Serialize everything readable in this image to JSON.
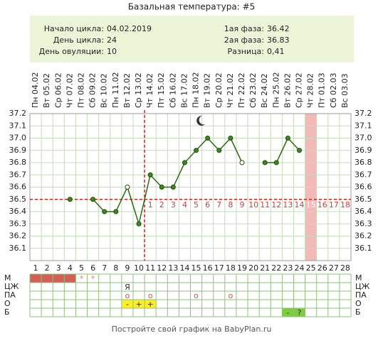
{
  "chart_data": {
    "type": "line",
    "title": "Базальная температура: #5",
    "info_left": [
      {
        "label": "Начало цикла:",
        "value": "04.02.2019"
      },
      {
        "label": "День цикла:",
        "value": "24"
      },
      {
        "label": "День овуляции:",
        "value": "10"
      }
    ],
    "info_right": [
      {
        "label": "1ая фаза:",
        "value": "36.42"
      },
      {
        "label": "2ая фаза:",
        "value": "36.83"
      },
      {
        "label": "Разница:",
        "value": "0,41"
      }
    ],
    "dates": [
      "Пн 04.02",
      "Вт 05.02",
      "Ср 06.02",
      "Чт 07.02",
      "Пт 08.02",
      "Сб 09.02",
      "Вс 10.02",
      "Пн 11.02",
      "Вт 12.02",
      "Ср 13.02",
      "Чт 14.02",
      "Пт 15.02",
      "Сб 16.02",
      "Вс 17.02",
      "Пн 18.02",
      "Вт 19.02",
      "Ср 20.02",
      "Чт 21.02",
      "Пт 22.02",
      "Сб 23.02",
      "Вс 24.02",
      "Пн 25.02",
      "Вт 26.02",
      "Ср 27.02",
      "Чт 28.02",
      "Пт 01.03",
      "Сб 02.03",
      "Вс 03.03"
    ],
    "x": [
      1,
      2,
      3,
      4,
      5,
      6,
      7,
      8,
      9,
      10,
      11,
      12,
      13,
      14,
      15,
      16,
      17,
      18,
      19,
      20,
      21,
      22,
      23,
      24,
      25,
      26,
      27,
      28
    ],
    "series": [
      {
        "name": null,
        "color": "#2d6a12",
        "values": [
          null,
          null,
          null,
          36.5,
          null,
          36.5,
          36.4,
          36.4,
          36.6,
          36.3,
          36.7,
          36.6,
          36.6,
          36.8,
          36.9,
          37.0,
          36.9,
          37.0,
          36.8,
          null,
          36.8,
          36.8,
          37.0,
          36.9,
          null,
          null,
          null,
          null
        ]
      }
    ],
    "open_points": [
      8,
      18
    ],
    "coverline": 36.5,
    "ovulation_day": 10,
    "highlight_day": 25,
    "luteal_days": [
      1,
      2,
      3,
      4,
      5,
      6,
      7,
      8,
      9,
      10,
      11,
      12,
      13,
      14,
      15,
      16,
      17,
      18
    ],
    "ylim": [
      36.0,
      37.2
    ],
    "yticks": [
      36.1,
      36.2,
      36.3,
      36.4,
      36.5,
      36.6,
      36.7,
      36.8,
      36.9,
      {
        "value": 37.0,
        "label": "37.0"
      },
      37.1,
      37.2
    ],
    "grid": true,
    "table": [
      {
        "label": "М",
        "fill_days": [
          1,
          2,
          3,
          4
        ],
        "fill_color": "#d55e57",
        "cell_color": null,
        "text_color": "#e07a7a",
        "cells": [
          null,
          null,
          null,
          null,
          "*",
          "*",
          null,
          null,
          null,
          null,
          null,
          null,
          null,
          null,
          null,
          null,
          null,
          null,
          null,
          null,
          null,
          null,
          null,
          null,
          null,
          null,
          null,
          null
        ]
      },
      {
        "label": "ЦЖ",
        "fill_days": [],
        "fill_color": null,
        "cell_color": null,
        "text_color": "#333333",
        "cells": [
          null,
          null,
          null,
          null,
          null,
          null,
          null,
          null,
          "Я",
          null,
          null,
          null,
          null,
          null,
          null,
          null,
          null,
          null,
          null,
          null,
          null,
          null,
          null,
          null,
          null,
          null,
          null,
          null
        ]
      },
      {
        "label": "ПА",
        "fill_days": [],
        "fill_color": null,
        "cell_color": null,
        "text_color": "#d05050",
        "cells": [
          null,
          null,
          null,
          null,
          null,
          null,
          null,
          null,
          "o",
          null,
          "o",
          null,
          null,
          null,
          "o",
          null,
          null,
          "o",
          null,
          null,
          null,
          null,
          null,
          null,
          null,
          null,
          null,
          null
        ]
      },
      {
        "label": "О",
        "fill_days": [],
        "fill_color": null,
        "cell_color": "#ffee22",
        "text_color": "#333333",
        "cells": [
          null,
          null,
          null,
          null,
          null,
          null,
          null,
          null,
          "-",
          "+",
          "+",
          null,
          null,
          null,
          null,
          null,
          null,
          null,
          null,
          null,
          null,
          null,
          null,
          null,
          null,
          null,
          null,
          null
        ]
      },
      {
        "label": "Б",
        "fill_days": [],
        "fill_color": null,
        "cell_color": "#7ccf3a",
        "text_color": "#333333",
        "cells": [
          null,
          null,
          null,
          null,
          null,
          null,
          null,
          null,
          null,
          null,
          null,
          null,
          null,
          null,
          null,
          null,
          null,
          null,
          null,
          null,
          null,
          null,
          "-",
          "?",
          null,
          null,
          null,
          null
        ]
      }
    ],
    "footer": "Постройте свой график на BabyPlan.ru"
  }
}
